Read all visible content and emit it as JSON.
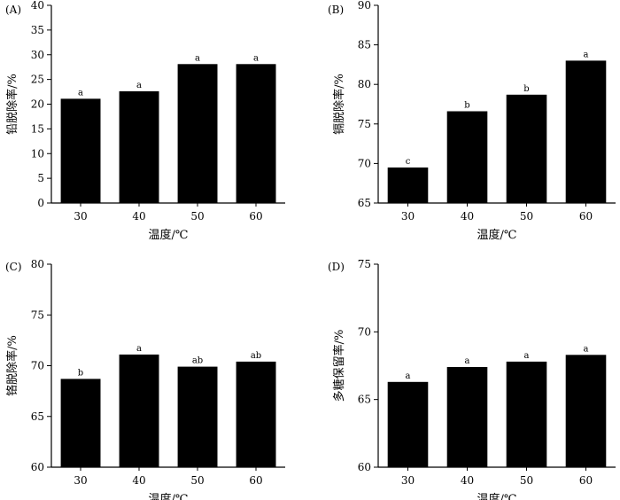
{
  "chart_data": [
    {
      "type": "bar",
      "panel_label": "(A)",
      "categories": [
        "30",
        "40",
        "50",
        "60"
      ],
      "values": [
        21.1,
        22.6,
        28.1,
        28.1
      ],
      "significance": [
        "a",
        "a",
        "a",
        "a"
      ],
      "xlabel": "温度/℃",
      "ylabel": "铅脱除率/%",
      "ylim": [
        0,
        40
      ],
      "yticks": [
        "0",
        "5",
        "10",
        "15",
        "20",
        "25",
        "30",
        "35",
        "40"
      ],
      "bar_color": "#000000"
    },
    {
      "type": "bar",
      "panel_label": "(B)",
      "categories": [
        "30",
        "40",
        "50",
        "60"
      ],
      "values": [
        69.5,
        76.6,
        78.7,
        83.0
      ],
      "significance": [
        "c",
        "b",
        "b",
        "a"
      ],
      "xlabel": "温度/℃",
      "ylabel": "镉脱除率/%",
      "ylim": [
        65,
        90
      ],
      "yticks": [
        "65",
        "70",
        "75",
        "80",
        "85",
        "90"
      ],
      "bar_color": "#000000"
    },
    {
      "type": "bar",
      "panel_label": "(C)",
      "categories": [
        "30",
        "40",
        "50",
        "60"
      ],
      "values": [
        68.7,
        71.1,
        69.9,
        70.4
      ],
      "significance": [
        "b",
        "a",
        "ab",
        "ab"
      ],
      "xlabel": "温度/℃",
      "ylabel": "铬脱除率/%",
      "ylim": [
        60,
        80
      ],
      "yticks": [
        "60",
        "65",
        "70",
        "75",
        "80"
      ],
      "bar_color": "#000000"
    },
    {
      "type": "bar",
      "panel_label": "(D)",
      "categories": [
        "30",
        "40",
        "50",
        "60"
      ],
      "values": [
        66.3,
        67.4,
        67.8,
        68.3
      ],
      "significance": [
        "a",
        "a",
        "a",
        "a"
      ],
      "xlabel": "温度/℃",
      "ylabel": "多糖保留率/%",
      "ylim": [
        60,
        75
      ],
      "yticks": [
        "60",
        "65",
        "70",
        "75"
      ],
      "bar_color": "#000000"
    }
  ]
}
